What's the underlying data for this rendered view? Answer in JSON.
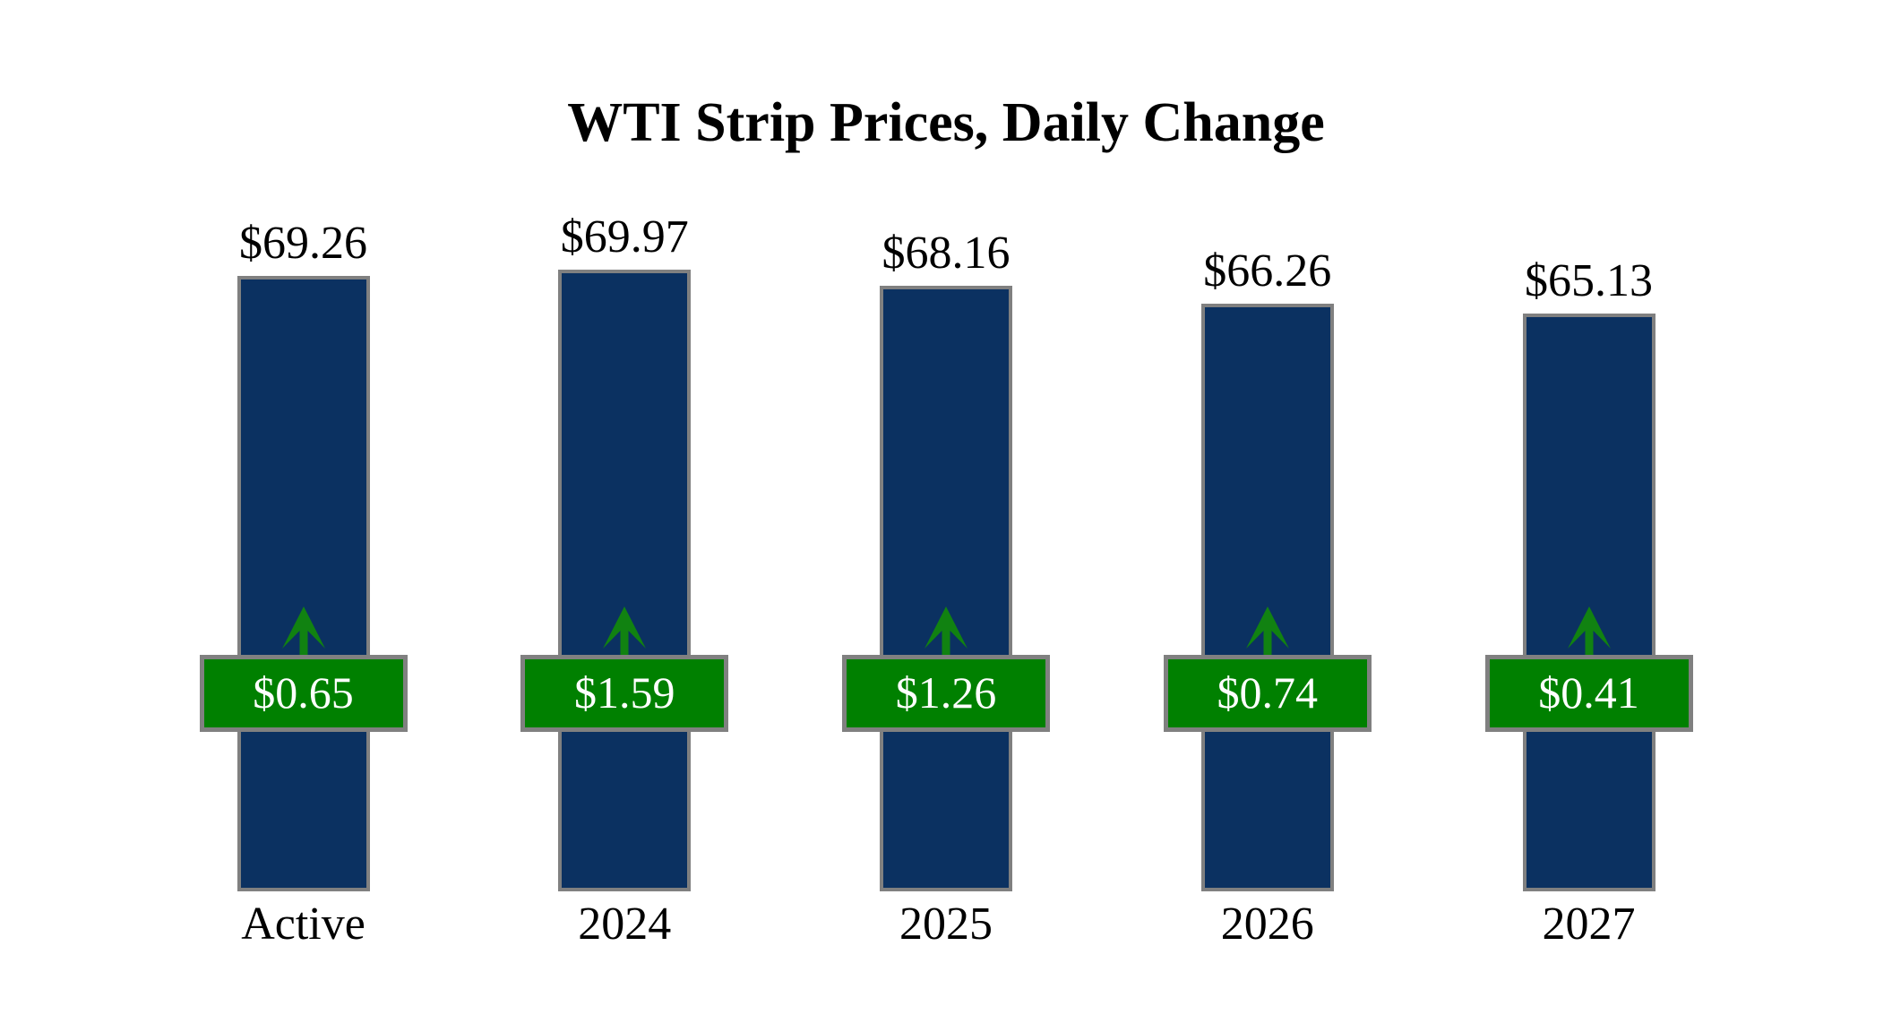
{
  "title": "WTI Strip Prices, Daily Change",
  "chart_data": {
    "type": "bar",
    "title": "WTI Strip Prices, Daily Change",
    "categories": [
      "Active",
      "2024",
      "2025",
      "2026",
      "2027"
    ],
    "series": [
      {
        "name": "strip_price",
        "values": [
          69.26,
          69.97,
          68.16,
          66.26,
          65.13
        ],
        "labels": [
          "$69.26",
          "$69.97",
          "$68.16",
          "$66.26",
          "$65.13"
        ]
      },
      {
        "name": "daily_change",
        "values": [
          0.65,
          1.59,
          1.26,
          0.74,
          0.41
        ],
        "labels": [
          "$0.65",
          "$1.59",
          "$1.26",
          "$0.74",
          "$0.41"
        ],
        "direction": "up"
      }
    ],
    "axes_visible": false,
    "grid": false,
    "legend": "none",
    "colors": {
      "bar_navy": "#0b3161",
      "badge_green": "#008000",
      "arrow_green": "#118211",
      "border_gray": "#808080",
      "badge_text": "#ffffff",
      "label_text": "#000000",
      "background": "#ffffff"
    }
  }
}
